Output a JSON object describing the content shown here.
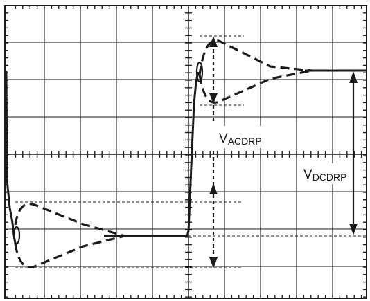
{
  "labels": {
    "vacdrp_main": "V",
    "vacdrp_sub": "ACDRP",
    "vdcdrp_main": "V",
    "vdcdrp_sub": "DCDRP"
  },
  "colors": {
    "grid": "#1a1a1a",
    "trace": "#1a1a1a",
    "background": "#ffffff"
  }
}
